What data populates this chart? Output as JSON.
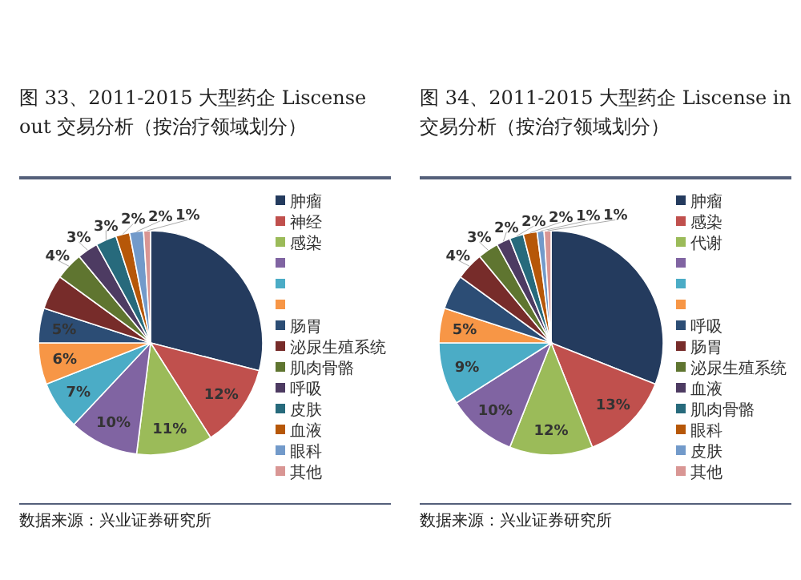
{
  "chart_data": [
    {
      "type": "pie",
      "title": "图 33、2011-2015 大型药企 Liscense out 交易分析（按治疗领域划分）",
      "legend": "right",
      "categories": [
        "肿瘤",
        "神经",
        "感染",
        null,
        null,
        null,
        "肠胃",
        "泌尿生殖系统",
        "肌肉骨骼",
        "呼吸",
        "皮肤",
        "血液",
        "眼科",
        "其他"
      ],
      "values": [
        29,
        12,
        11,
        10,
        7,
        6,
        5,
        5,
        4,
        3,
        3,
        2,
        2,
        1
      ],
      "value_labels": [
        null,
        "12%",
        "11%",
        "10%",
        "7%",
        "6%",
        "5%",
        null,
        "4%",
        "3%",
        "3%",
        "2%",
        "2%",
        "1%"
      ],
      "colors": [
        "#243b5e",
        "#c0504d",
        "#9bbb59",
        "#8064a2",
        "#4bacc6",
        "#f79646",
        "#2c4d75",
        "#772c2a",
        "#5f7530",
        "#4d3b62",
        "#276a7c",
        "#b65708",
        "#729aca",
        "#d99694"
      ],
      "annotations": [
        "数据来源：兴业证券研究所"
      ]
    },
    {
      "type": "pie",
      "title": "图 34、2011-2015 大型药企 Liscense in 交易分析（按治疗领域划分）",
      "legend": "right",
      "categories": [
        "肿瘤",
        "感染",
        "代谢",
        null,
        null,
        null,
        "呼吸",
        "肠胃",
        "泌尿生殖系统",
        "血液",
        "肌肉骨骼",
        "眼科",
        "皮肤",
        "其他"
      ],
      "values": [
        31,
        13,
        12,
        10,
        9,
        5,
        5,
        4,
        3,
        2,
        2,
        2,
        1,
        1
      ],
      "value_labels": [
        null,
        "13%",
        "12%",
        "10%",
        "9%",
        "5%",
        null,
        "4%",
        "3%",
        "2%",
        "2%",
        "2%",
        "1%",
        "1%"
      ],
      "colors": [
        "#243b5e",
        "#c0504d",
        "#9bbb59",
        "#8064a2",
        "#4bacc6",
        "#f79646",
        "#2c4d75",
        "#772c2a",
        "#5f7530",
        "#4d3b62",
        "#276a7c",
        "#b65708",
        "#729aca",
        "#d99694"
      ],
      "annotations": [
        "数据来源：兴业证券研究所"
      ]
    }
  ]
}
